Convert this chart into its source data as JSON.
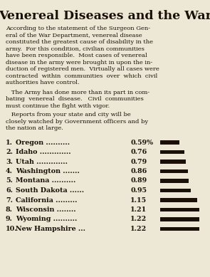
{
  "title": "Venereal Diseases and the War",
  "para1_lines": [
    "According to the statement of the Surgeon Gen-",
    "eral of the War Department, venereal disease",
    "constituted the greatest cause of disability in the",
    "army.  For this condition, civilian communities",
    "have been responsible.  Most cases of venereal",
    "disease in the army were brought in upon the in-",
    "duction of registered men.  Virtually all cases were",
    "contracted  within  communities  over  which  civil",
    "authorities have control."
  ],
  "para2_lines": [
    "   The Army has done more than its part in com-",
    "bating  venereal  disease.   Civil  communities",
    "must continue the fight with vigor."
  ],
  "para3_lines": [
    "   Reports from your state and city will be",
    "closely watched by Government officers and by",
    "the nation at large."
  ],
  "rows": [
    {
      "rank": "1.",
      "state": "Oregon",
      "dots": "..........",
      "value": "0.59%",
      "bar": 0.59
    },
    {
      "rank": "2.",
      "state": "Idaho",
      "dots": ".............",
      "value": "0.76",
      "bar": 0.76
    },
    {
      "rank": "3.",
      "state": "Utah",
      "dots": ".............",
      "value": "0.79",
      "bar": 0.79
    },
    {
      "rank": "4.",
      "state": "Washington",
      "dots": ".......",
      "value": "0.86",
      "bar": 0.86
    },
    {
      "rank": "5.",
      "state": "Montana",
      "dots": "..........",
      "value": "0.89",
      "bar": 0.89
    },
    {
      "rank": "6.",
      "state": "South Dakota",
      "dots": "......",
      "value": "0.95",
      "bar": 0.95
    },
    {
      "rank": "7.",
      "state": "California",
      "dots": ".........",
      "value": "1.15",
      "bar": 1.15
    },
    {
      "rank": "8.",
      "state": "Wisconsin",
      "dots": "........",
      "value": "1.21",
      "bar": 1.21
    },
    {
      "rank": "9.",
      "state": "Wyoming",
      "dots": "..........",
      "value": "1.22",
      "bar": 1.22
    },
    {
      "rank": "10.",
      "state": "New Hampshire",
      "dots": "...",
      "value": "1.22",
      "bar": 1.22
    }
  ],
  "bg_color": "#ede8d5",
  "text_color": "#1a1008",
  "bar_color": "#1a1008",
  "max_bar": 1.22,
  "title_fontsize": 12.5,
  "body_fontsize": 6.0,
  "list_fontsize": 6.8
}
